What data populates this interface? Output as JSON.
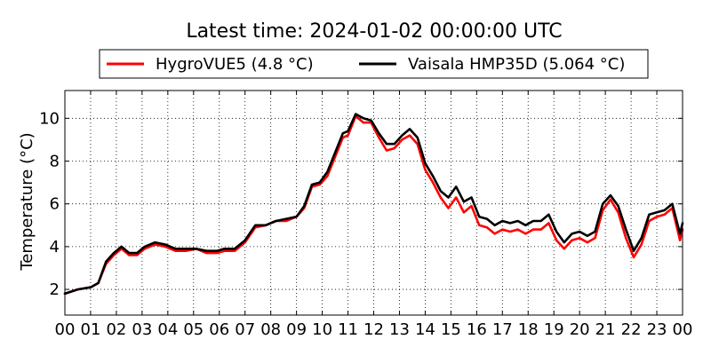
{
  "chart_data": {
    "type": "line",
    "title": "Latest time: 2024-01-02 00:00:00 UTC",
    "xlabel": "",
    "ylabel": "Temperature (°C)",
    "xlim": [
      0,
      24
    ],
    "ylim": [
      0.8,
      11.3
    ],
    "x_ticks": [
      0,
      1,
      2,
      3,
      4,
      5,
      6,
      7,
      8,
      9,
      10,
      11,
      12,
      13,
      14,
      15,
      16,
      17,
      18,
      19,
      20,
      21,
      22,
      23,
      24
    ],
    "x_tick_labels": [
      "00",
      "01",
      "02",
      "03",
      "04",
      "05",
      "06",
      "07",
      "08",
      "09",
      "10",
      "11",
      "12",
      "13",
      "14",
      "15",
      "16",
      "17",
      "18",
      "19",
      "20",
      "21",
      "22",
      "23",
      "00"
    ],
    "y_ticks": [
      2,
      4,
      6,
      8,
      10
    ],
    "grid": true,
    "legend_position": "top",
    "x": [
      0,
      0.5,
      1.0,
      1.3,
      1.6,
      1.9,
      2.2,
      2.5,
      2.8,
      3.1,
      3.5,
      3.9,
      4.3,
      4.7,
      5.1,
      5.5,
      5.9,
      6.2,
      6.6,
      7.0,
      7.4,
      7.8,
      8.2,
      8.6,
      9.0,
      9.3,
      9.6,
      9.9,
      10.2,
      10.5,
      10.8,
      11.0,
      11.3,
      11.6,
      11.9,
      12.2,
      12.5,
      12.8,
      13.1,
      13.4,
      13.7,
      14.0,
      14.3,
      14.6,
      14.9,
      15.2,
      15.5,
      15.8,
      16.1,
      16.4,
      16.7,
      17.0,
      17.3,
      17.6,
      17.9,
      18.2,
      18.5,
      18.8,
      19.1,
      19.4,
      19.7,
      20.0,
      20.3,
      20.6,
      20.9,
      21.2,
      21.5,
      21.8,
      22.1,
      22.4,
      22.7,
      23.0,
      23.3,
      23.6,
      23.9,
      24.0
    ],
    "series": [
      {
        "name": "HygroVUE5 (4.8 °C)",
        "color": "#ff0000",
        "values": [
          1.8,
          2.0,
          2.1,
          2.3,
          3.2,
          3.6,
          3.9,
          3.6,
          3.6,
          3.9,
          4.1,
          4.0,
          3.8,
          3.8,
          3.9,
          3.7,
          3.7,
          3.8,
          3.8,
          4.2,
          4.9,
          5.0,
          5.2,
          5.2,
          5.4,
          5.8,
          6.8,
          6.9,
          7.3,
          8.2,
          9.1,
          9.2,
          10.1,
          9.8,
          9.8,
          9.1,
          8.5,
          8.6,
          9.0,
          9.2,
          8.8,
          7.6,
          7.0,
          6.3,
          5.8,
          6.3,
          5.6,
          5.9,
          5.0,
          4.9,
          4.6,
          4.8,
          4.7,
          4.8,
          4.6,
          4.8,
          4.8,
          5.1,
          4.3,
          3.9,
          4.3,
          4.4,
          4.2,
          4.4,
          5.7,
          6.2,
          5.6,
          4.4,
          3.5,
          4.1,
          5.2,
          5.4,
          5.5,
          5.8,
          4.3,
          4.8
        ]
      },
      {
        "name": "Vaisala HMP35D (5.064 °C)",
        "color": "#000000",
        "values": [
          1.8,
          2.0,
          2.1,
          2.3,
          3.3,
          3.7,
          4.0,
          3.7,
          3.7,
          4.0,
          4.2,
          4.1,
          3.9,
          3.9,
          3.9,
          3.8,
          3.8,
          3.9,
          3.9,
          4.3,
          5.0,
          5.0,
          5.2,
          5.3,
          5.4,
          5.9,
          6.9,
          7.0,
          7.5,
          8.4,
          9.3,
          9.4,
          10.2,
          10.0,
          9.9,
          9.3,
          8.8,
          8.8,
          9.2,
          9.5,
          9.1,
          7.9,
          7.3,
          6.6,
          6.3,
          6.8,
          6.1,
          6.3,
          5.4,
          5.3,
          5.0,
          5.2,
          5.1,
          5.2,
          5.0,
          5.2,
          5.2,
          5.5,
          4.7,
          4.2,
          4.6,
          4.7,
          4.5,
          4.7,
          6.0,
          6.4,
          5.9,
          4.8,
          3.8,
          4.4,
          5.5,
          5.6,
          5.7,
          6.0,
          4.6,
          5.1
        ]
      }
    ]
  }
}
